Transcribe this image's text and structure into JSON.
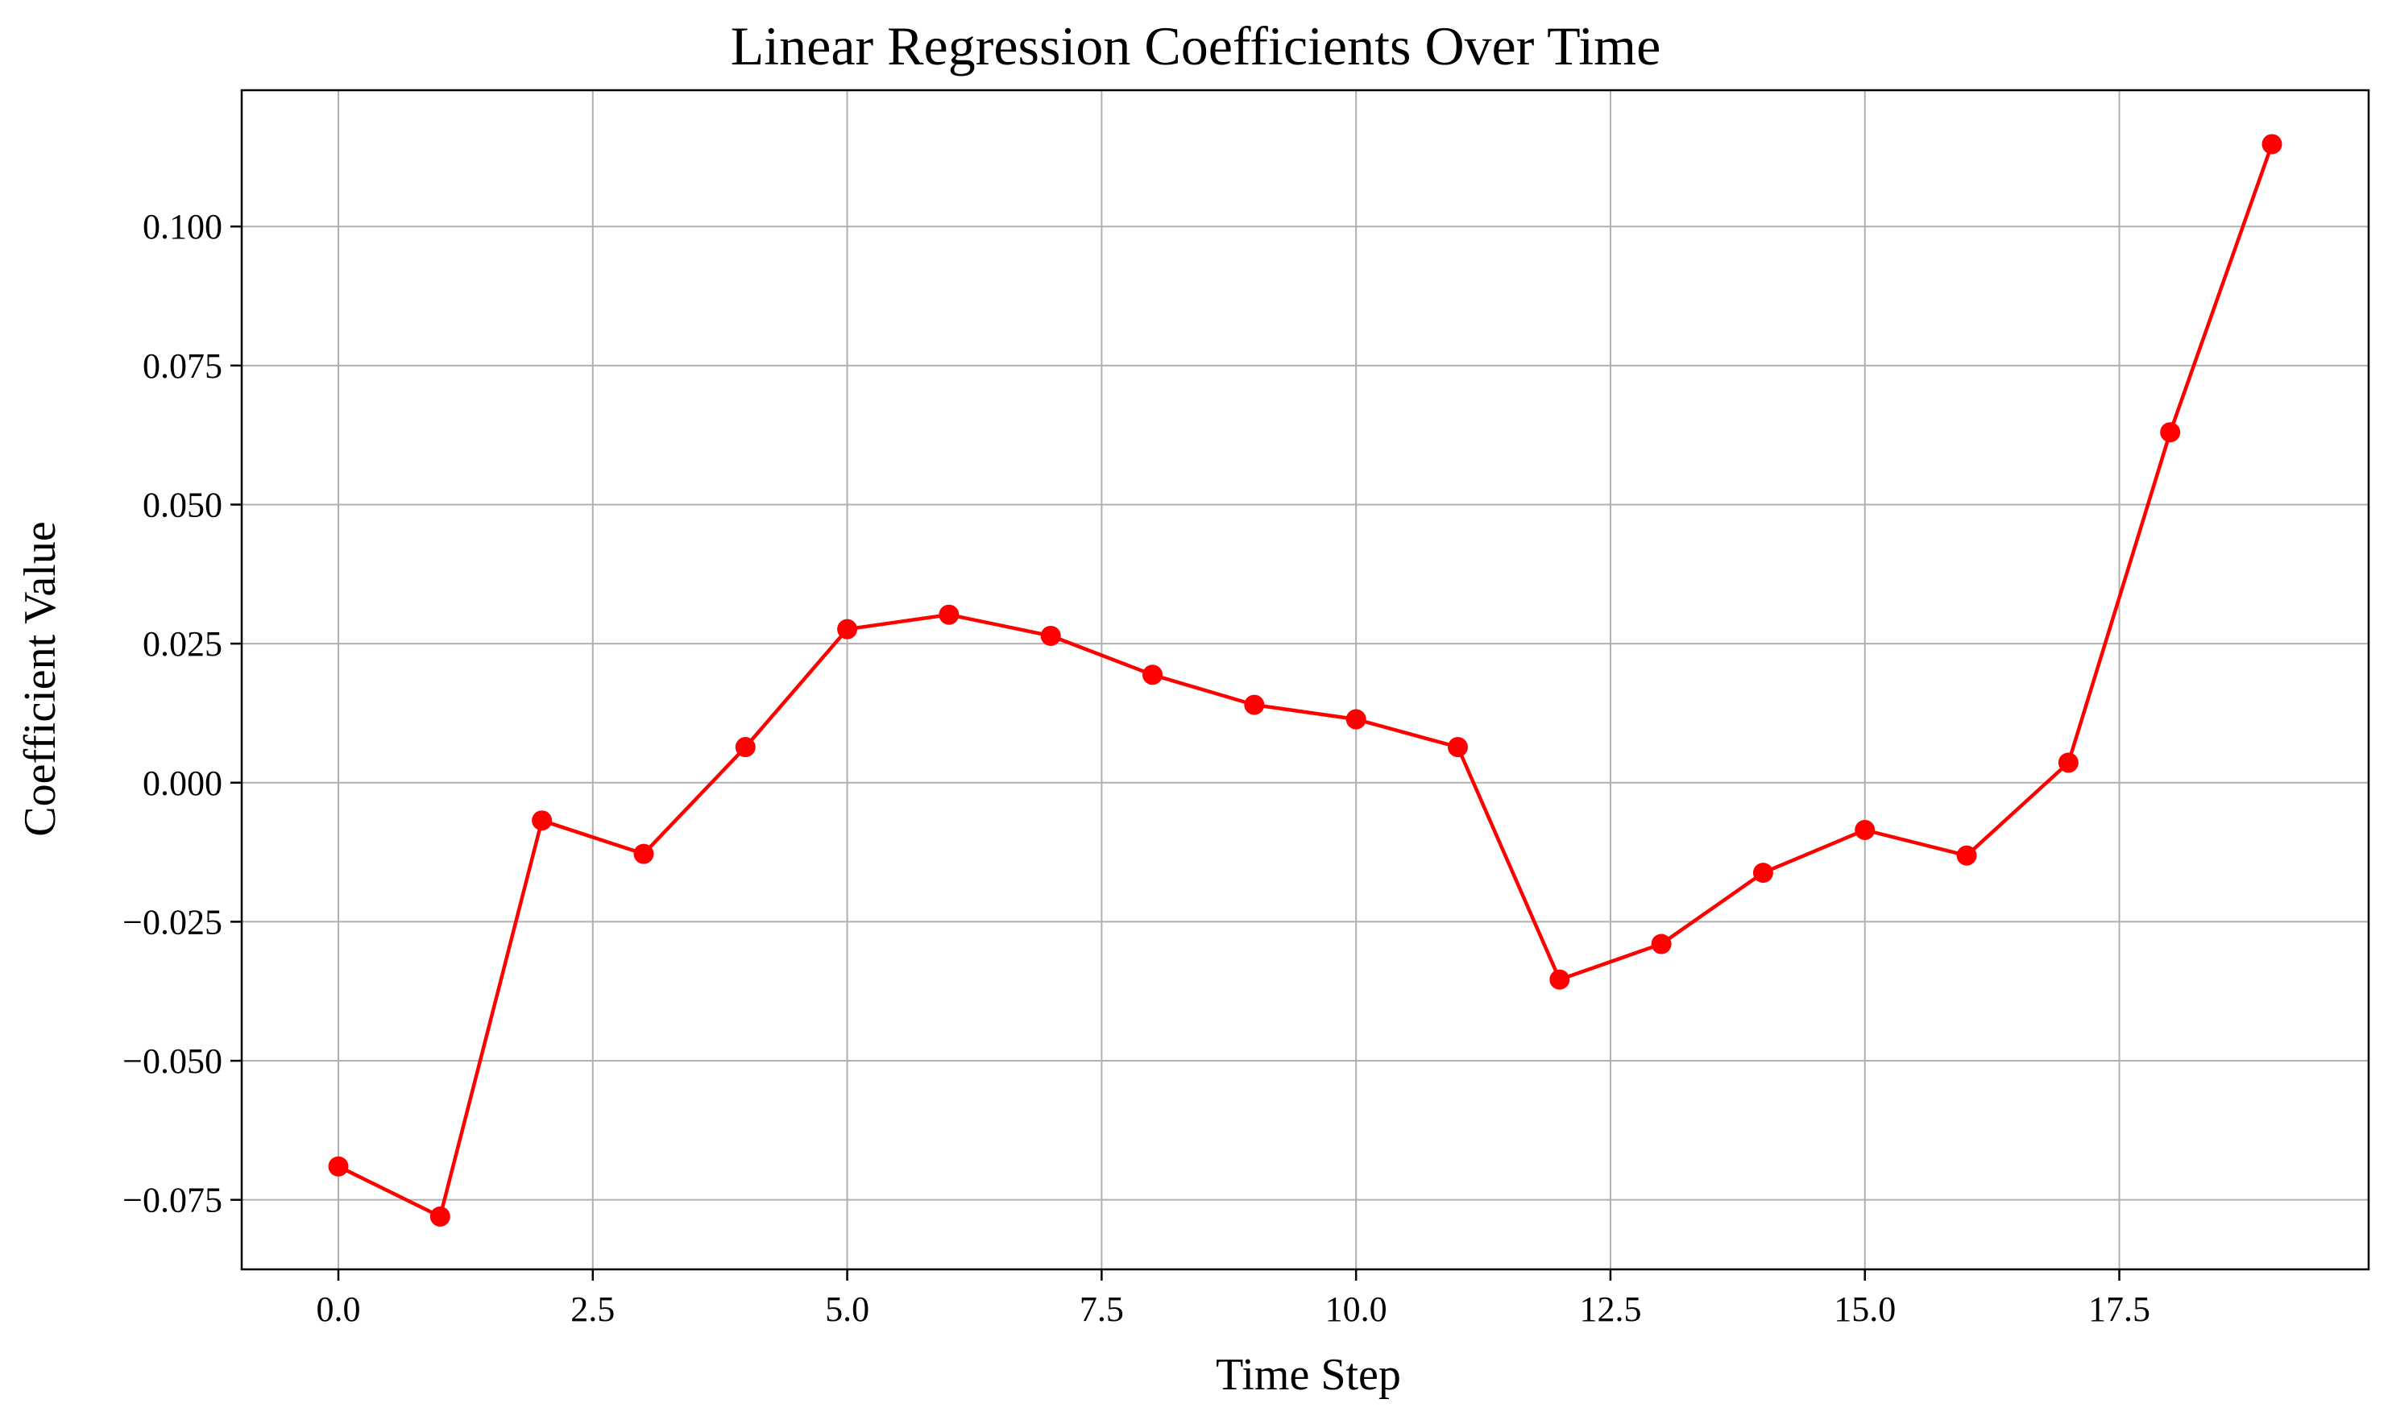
{
  "chart_data": {
    "type": "line",
    "title": "Linear Regression Coefficients Over Time",
    "xlabel": "Time Step",
    "ylabel": "Coefficient Value",
    "xlim": [
      -0.95,
      19.95
    ],
    "ylim": [
      -0.0875,
      0.1245
    ],
    "grid": true,
    "x_ticks": [
      0.0,
      2.5,
      5.0,
      7.5,
      10.0,
      12.5,
      15.0,
      17.5
    ],
    "x_tick_labels": [
      "0.0",
      "2.5",
      "5.0",
      "7.5",
      "10.0",
      "12.5",
      "15.0",
      "17.5"
    ],
    "y_ticks": [
      -0.075,
      -0.05,
      -0.025,
      0.0,
      0.025,
      0.05,
      0.075,
      0.1
    ],
    "y_tick_labels": [
      "−0.075",
      "−0.050",
      "−0.025",
      "0.000",
      "0.025",
      "0.050",
      "0.075",
      "0.100"
    ],
    "series": [
      {
        "color": "#ff0000",
        "marker": "circle",
        "x": [
          0,
          1,
          2,
          3,
          4,
          5,
          6,
          7,
          8,
          9,
          10,
          11,
          12,
          13,
          14,
          15,
          16,
          17,
          18,
          19
        ],
        "y": [
          -0.069,
          -0.078,
          -0.0068,
          -0.0128,
          0.0064,
          0.0276,
          0.0302,
          0.0264,
          0.0194,
          0.014,
          0.0114,
          0.0064,
          -0.0354,
          -0.029,
          -0.0162,
          -0.0085,
          -0.0131,
          0.0036,
          0.063,
          0.1148
        ]
      }
    ]
  }
}
